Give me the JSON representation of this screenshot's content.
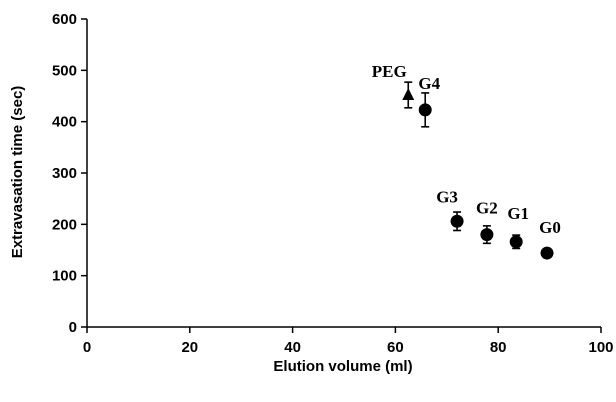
{
  "chart_data": {
    "type": "scatter",
    "title": "",
    "xlabel": "Elution volume (ml)",
    "ylabel": "Extravasation time (sec)",
    "xlim": [
      0,
      100
    ],
    "ylim": [
      0,
      600
    ],
    "xticks": [
      0,
      20,
      40,
      60,
      80,
      100
    ],
    "yticks": [
      0,
      100,
      200,
      300,
      400,
      500,
      600
    ],
    "grid": false,
    "legend": "none",
    "points": [
      {
        "label": "PEG",
        "x": 62.5,
        "y": 452,
        "err": 25,
        "marker": "triangle"
      },
      {
        "label": "G4",
        "x": 65.8,
        "y": 423,
        "err": 33,
        "marker": "circle"
      },
      {
        "label": "G3",
        "x": 72.0,
        "y": 206,
        "err": 18,
        "marker": "circle"
      },
      {
        "label": "G2",
        "x": 77.8,
        "y": 180,
        "err": 17,
        "marker": "circle"
      },
      {
        "label": "G1",
        "x": 83.5,
        "y": 166,
        "err": 13,
        "marker": "circle"
      },
      {
        "label": "G0",
        "x": 89.5,
        "y": 144,
        "err": 8,
        "marker": "circle"
      }
    ]
  }
}
